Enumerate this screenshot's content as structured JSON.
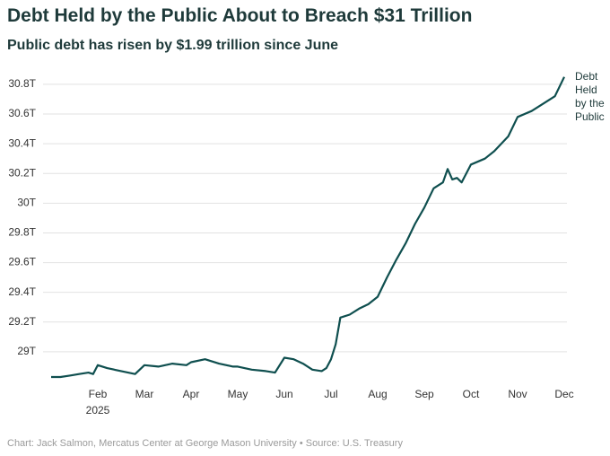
{
  "chart_data": {
    "type": "line",
    "title": "Debt Held by the Public About to Breach $31 Trillion",
    "subtitle": "Public debt has risen by $1.99 trillion since June",
    "source": "Chart: Jack Salmon, Mercatus Center at George Mason University • Source: U.S. Treasury",
    "x": [
      0.0,
      0.2,
      0.4,
      0.6,
      0.8,
      0.9,
      1.0,
      1.2,
      1.5,
      1.8,
      2.0,
      2.3,
      2.6,
      2.9,
      3.0,
      3.3,
      3.6,
      3.9,
      4.0,
      4.3,
      4.6,
      4.8,
      5.0,
      5.2,
      5.4,
      5.6,
      5.8,
      5.9,
      6.0,
      6.1,
      6.2,
      6.4,
      6.6,
      6.8,
      7.0,
      7.2,
      7.4,
      7.6,
      7.8,
      8.0,
      8.2,
      8.4,
      8.5,
      8.6,
      8.7,
      8.8,
      9.0,
      9.3,
      9.5,
      9.8,
      10.0,
      10.3,
      10.6,
      10.8,
      11.0
    ],
    "series": [
      {
        "name": "Debt Held by the Public",
        "color": "#0f4f4f",
        "values": [
          28.83,
          28.83,
          28.84,
          28.85,
          28.86,
          28.85,
          28.91,
          28.89,
          28.87,
          28.85,
          28.91,
          28.9,
          28.92,
          28.91,
          28.93,
          28.95,
          28.92,
          28.9,
          28.9,
          28.88,
          28.87,
          28.86,
          28.96,
          28.95,
          28.92,
          28.88,
          28.87,
          28.89,
          28.95,
          29.05,
          29.23,
          29.25,
          29.29,
          29.32,
          29.37,
          29.5,
          29.62,
          29.73,
          29.86,
          29.97,
          30.1,
          30.14,
          30.23,
          30.16,
          30.17,
          30.14,
          30.26,
          30.3,
          30.35,
          30.45,
          30.58,
          30.62,
          30.68,
          30.72,
          30.85
        ]
      }
    ],
    "xlim": [
      0,
      11
    ],
    "xticks": [
      {
        "value": 1,
        "label": "Feb"
      },
      {
        "value": 2,
        "label": "Mar"
      },
      {
        "value": 3,
        "label": "Apr"
      },
      {
        "value": 4,
        "label": "May"
      },
      {
        "value": 5,
        "label": "Jun"
      },
      {
        "value": 6,
        "label": "Jul"
      },
      {
        "value": 7,
        "label": "Aug"
      },
      {
        "value": 8,
        "label": "Sep"
      },
      {
        "value": 9,
        "label": "Oct"
      },
      {
        "value": 10,
        "label": "Nov"
      },
      {
        "value": 11,
        "label": "Dec"
      }
    ],
    "xtick_year": "2025",
    "ylim": [
      28.8,
      30.86
    ],
    "yticks": [
      {
        "value": 29,
        "label": "29T"
      },
      {
        "value": 29.2,
        "label": "29.2T"
      },
      {
        "value": 29.4,
        "label": "29.4T"
      },
      {
        "value": 29.6,
        "label": "29.6T"
      },
      {
        "value": 29.8,
        "label": "29.8T"
      },
      {
        "value": 30,
        "label": "30T"
      },
      {
        "value": 30.2,
        "label": "30.2T"
      },
      {
        "value": 30.4,
        "label": "30.4T"
      },
      {
        "value": 30.6,
        "label": "30.6T"
      },
      {
        "value": 30.8,
        "label": "30.8T"
      }
    ],
    "grid": true
  }
}
